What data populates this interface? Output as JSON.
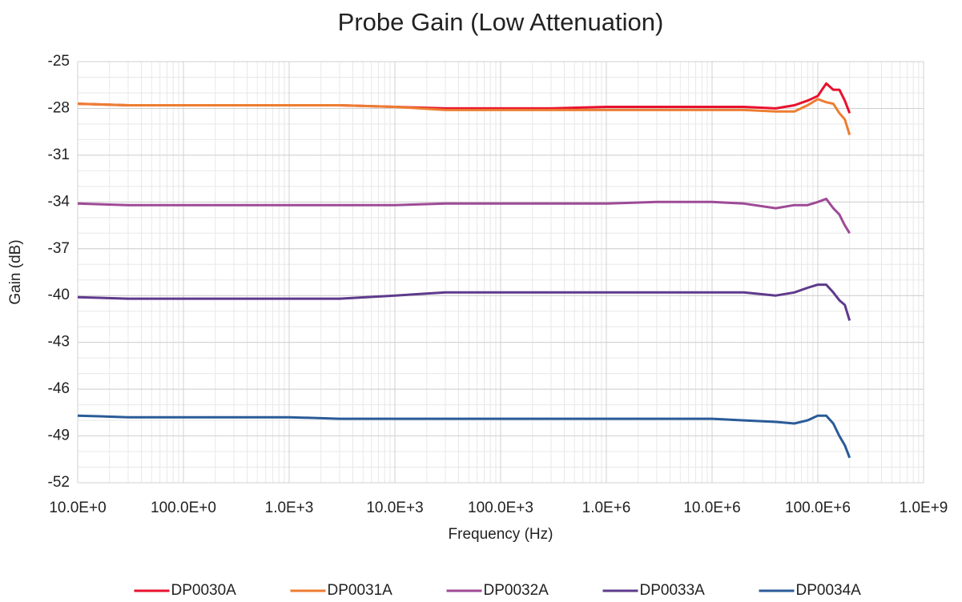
{
  "chart_data": {
    "type": "line",
    "title": "Probe Gain (Low Attenuation)",
    "x_label": "Frequency (Hz)",
    "y_label": "Gain (dB)",
    "x_scale": "log",
    "grid": true,
    "legend": "bottom",
    "xlim": [
      10,
      1000000000
    ],
    "ylim": [
      -52,
      -25
    ],
    "xticks": [
      {
        "value": 10,
        "label": "10.0E+0"
      },
      {
        "value": 100,
        "label": "100.0E+0"
      },
      {
        "value": 1000,
        "label": "1.0E+3"
      },
      {
        "value": 10000,
        "label": "10.0E+3"
      },
      {
        "value": 100000,
        "label": "100.0E+3"
      },
      {
        "value": 1000000,
        "label": "1.0E+6"
      },
      {
        "value": 10000000,
        "label": "10.0E+6"
      },
      {
        "value": 100000000,
        "label": "100.0E+6"
      },
      {
        "value": 1000000000,
        "label": "1.0E+9"
      }
    ],
    "yticks": [
      -25,
      -28,
      -31,
      -34,
      -37,
      -40,
      -43,
      -46,
      -49,
      -52
    ],
    "x": [
      10,
      30,
      100,
      300,
      1000,
      3000,
      10000,
      30000,
      100000,
      300000,
      1000000,
      3000000,
      10000000,
      20000000,
      40000000,
      60000000,
      80000000,
      100000000,
      120000000,
      140000000,
      160000000,
      180000000,
      200000000
    ],
    "series": [
      {
        "name": "DP0030A",
        "color": "#e8112d",
        "values": [
          -27.7,
          -27.8,
          -27.8,
          -27.8,
          -27.8,
          -27.8,
          -27.9,
          -28.0,
          -28.0,
          -28.0,
          -27.9,
          -27.9,
          -27.9,
          -27.9,
          -28.0,
          -27.8,
          -27.5,
          -27.2,
          -26.4,
          -26.8,
          -26.8,
          -27.5,
          -28.3
        ]
      },
      {
        "name": "DP0031A",
        "color": "#ed7d31",
        "values": [
          -27.7,
          -27.8,
          -27.8,
          -27.8,
          -27.8,
          -27.8,
          -27.9,
          -28.1,
          -28.1,
          -28.1,
          -28.1,
          -28.1,
          -28.1,
          -28.1,
          -28.2,
          -28.2,
          -27.8,
          -27.4,
          -27.6,
          -27.7,
          -28.3,
          -28.7,
          -29.7
        ]
      },
      {
        "name": "DP0032A",
        "color": "#9e4a96",
        "values": [
          -34.1,
          -34.2,
          -34.2,
          -34.2,
          -34.2,
          -34.2,
          -34.2,
          -34.1,
          -34.1,
          -34.1,
          -34.1,
          -34.0,
          -34.0,
          -34.1,
          -34.4,
          -34.2,
          -34.2,
          -34.0,
          -33.8,
          -34.4,
          -34.8,
          -35.5,
          -36.0
        ]
      },
      {
        "name": "DP0033A",
        "color": "#5e3a8c",
        "values": [
          -40.1,
          -40.2,
          -40.2,
          -40.2,
          -40.2,
          -40.2,
          -40.0,
          -39.8,
          -39.8,
          -39.8,
          -39.8,
          -39.8,
          -39.8,
          -39.8,
          -40.0,
          -39.8,
          -39.5,
          -39.3,
          -39.3,
          -39.8,
          -40.3,
          -40.6,
          -41.6
        ]
      },
      {
        "name": "DP0034A",
        "color": "#2a5b98",
        "values": [
          -47.7,
          -47.8,
          -47.8,
          -47.8,
          -47.8,
          -47.9,
          -47.9,
          -47.9,
          -47.9,
          -47.9,
          -47.9,
          -47.9,
          -47.9,
          -48.0,
          -48.1,
          -48.2,
          -48.0,
          -47.7,
          -47.7,
          -48.2,
          -49.0,
          -49.6,
          -50.4
        ]
      }
    ]
  }
}
